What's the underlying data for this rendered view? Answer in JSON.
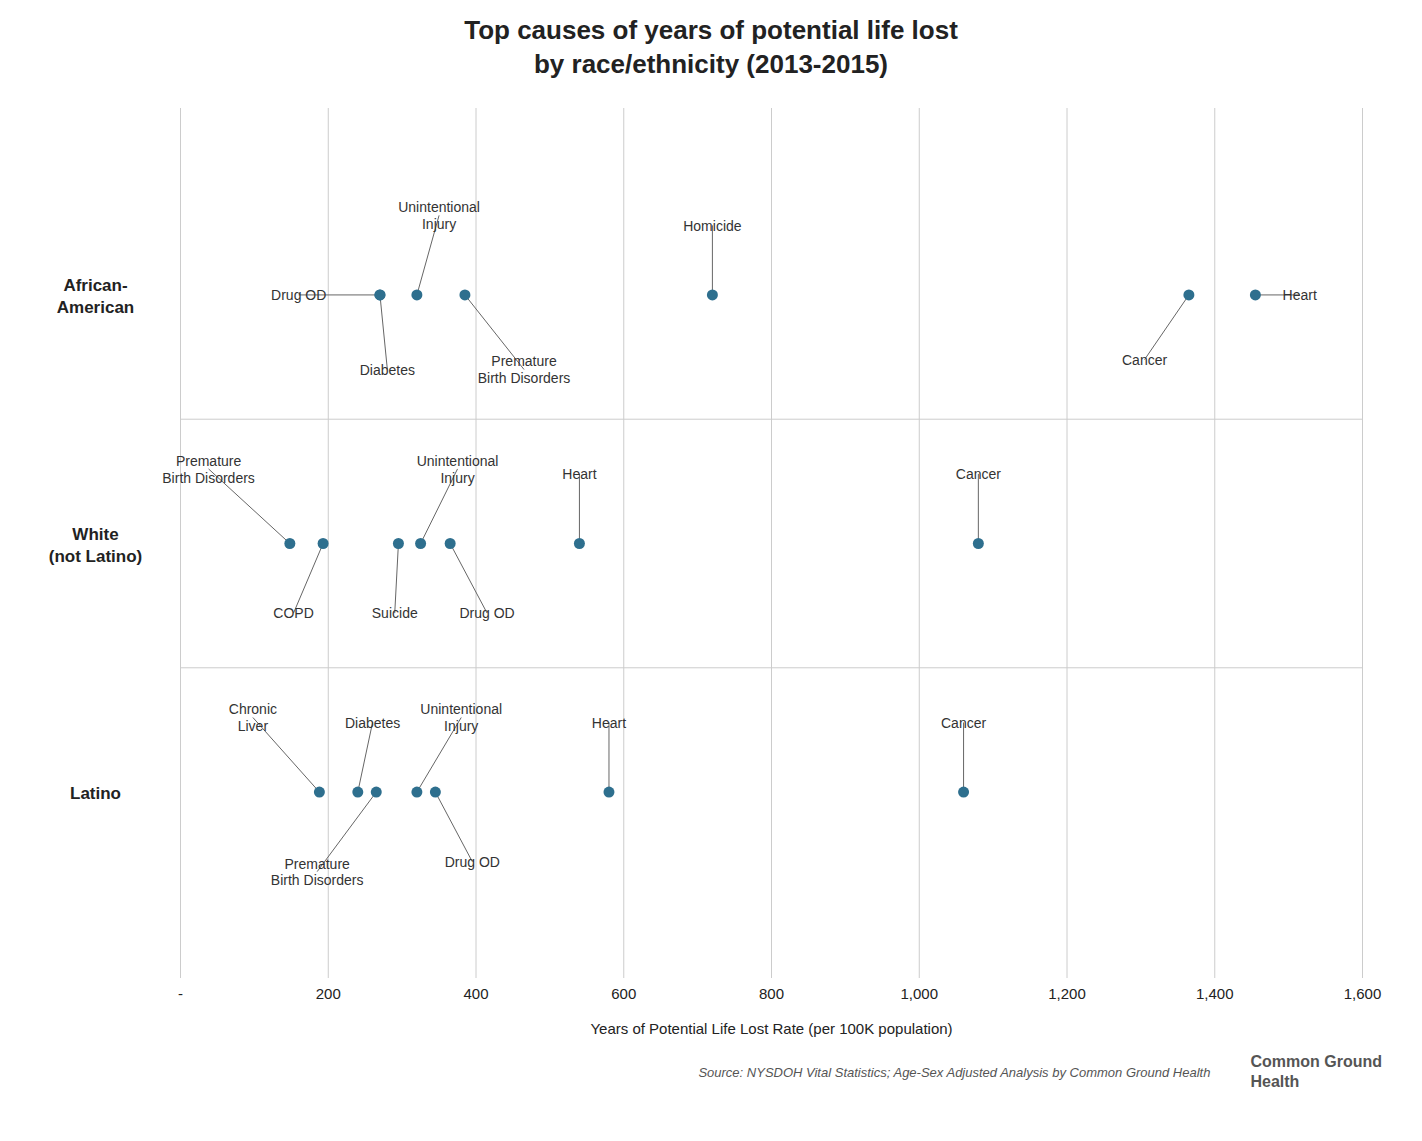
{
  "chart_data": {
    "type": "dot",
    "title": "Top causes of years of potential life lost\nby race/ethnicity (2013-2015)",
    "x_label": "Years of Potential Life Lost Rate (per 100K population)",
    "source": "Source: NYSDOH Vital Statistics; Age-Sex Adjusted Analysis by Common Ground Health",
    "logo_text": "Common Ground\nHealth",
    "color": "#2e6f8e",
    "grid": true,
    "tick_labels": "x",
    "categories": [
      "African-\nAmerican",
      "White\n(not Latino)",
      "Latino"
    ],
    "values": [
      [
        270,
        320,
        270,
        385,
        720,
        1365,
        1455
      ],
      [
        148,
        193,
        295,
        325,
        365,
        540,
        1080
      ],
      [
        188,
        240,
        265,
        320,
        345,
        580,
        1060
      ]
    ],
    "annotations": [
      [
        "Drug OD",
        "Unintentional\nInjury",
        "Diabetes",
        "Premature\nBirth Disorders",
        "Homicide",
        "Cancer",
        "Heart"
      ],
      [
        "Premature\nBirth Disorders",
        "COPD",
        "Suicide",
        "Unintentional\nInjury",
        "Drug OD",
        "Heart",
        "Cancer"
      ],
      [
        "Chronic\nLiver",
        "Diabetes",
        "Premature\nBirth Disorders",
        "Unintentional\nInjury",
        "Drug OD",
        "Heart",
        "Cancer"
      ]
    ],
    "xlim": [
      0,
      1600
    ],
    "xticks": [
      {
        "value": 0,
        "label": "-"
      },
      200,
      400,
      600,
      800,
      {
        "value": 1000,
        "label": "1,000"
      },
      {
        "value": 1200,
        "label": "1,200"
      },
      {
        "value": 1400,
        "label": "1,400"
      },
      {
        "value": 1600,
        "label": "1,600"
      }
    ]
  }
}
